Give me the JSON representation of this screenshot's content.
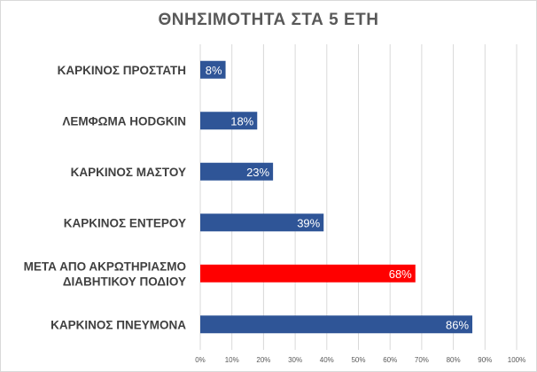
{
  "chart_data": {
    "type": "bar",
    "orientation": "horizontal",
    "title": "ΘΝΗΣΙΜΟΤΗΤΑ ΣΤΑ 5 ΕΤΗ",
    "xlabel": "",
    "ylabel": "",
    "categories": [
      [
        "ΚΑΡΚΙΝΟΣ ΠΡΟΣΤΑΤΗ"
      ],
      [
        "ΛΕΜΦΩΜΑ HODGKIN"
      ],
      [
        "ΚΑΡΚΙΝΟΣ ΜΑΣΤΟΥ"
      ],
      [
        "ΚΑΡΚΙΝΟΣ ΕΝΤΕΡΟΥ"
      ],
      [
        "ΜΕΤΑ ΑΠΟ ΑΚΡΩΤΗΡΙΑΣΜΟ",
        "ΔΙΑΒΗΤΙΚΟΥ ΠΟΔΙΟΥ"
      ],
      [
        "ΚΑΡΚΙΝΟΣ ΠΝΕΥΜΟΝΑ"
      ]
    ],
    "values": [
      8,
      18,
      23,
      39,
      68,
      86
    ],
    "value_labels": [
      "8%",
      "18%",
      "23%",
      "39%",
      "68%",
      "86%"
    ],
    "bar_colors": [
      "#2f5597",
      "#2f5597",
      "#2f5597",
      "#2f5597",
      "#ff0000",
      "#2f5597"
    ],
    "xlim": [
      0,
      100
    ],
    "x_ticks": [
      0,
      10,
      20,
      30,
      40,
      50,
      60,
      70,
      80,
      90,
      100
    ],
    "x_tick_labels": [
      "0%",
      "10%",
      "20%",
      "30%",
      "40%",
      "50%",
      "60%",
      "70%",
      "80%",
      "90%",
      "100%"
    ],
    "grid": true,
    "legend": "none"
  }
}
